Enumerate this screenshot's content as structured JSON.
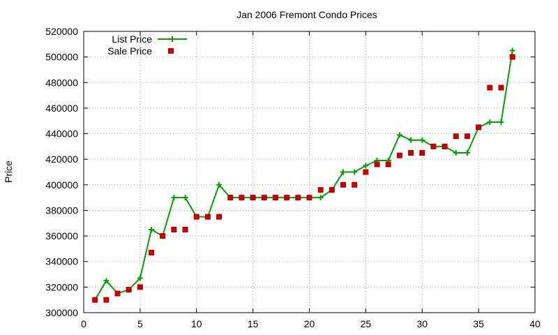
{
  "chart_data": {
    "type": "line",
    "title": "Jan 2006 Fremont Condo Prices",
    "xlabel": "",
    "ylabel": "Price",
    "xlim": [
      0,
      40
    ],
    "ylim": [
      300000,
      520000
    ],
    "x_ticks": [
      0,
      5,
      10,
      15,
      20,
      25,
      30,
      35,
      40
    ],
    "y_ticks": [
      300000,
      320000,
      340000,
      360000,
      380000,
      400000,
      420000,
      440000,
      460000,
      480000,
      500000,
      520000
    ],
    "grid": true,
    "legend_position": "top-left",
    "series": [
      {
        "name": "List Price",
        "style": "line-points",
        "marker": "plus",
        "color": "#00a000",
        "x": [
          1,
          2,
          3,
          4,
          5,
          6,
          7,
          8,
          9,
          10,
          11,
          12,
          13,
          14,
          15,
          16,
          17,
          18,
          19,
          20,
          21,
          22,
          23,
          24,
          25,
          26,
          27,
          28,
          29,
          30,
          31,
          32,
          33,
          34,
          35,
          36,
          37,
          38
        ],
        "y": [
          310000,
          325000,
          315000,
          318000,
          327000,
          365000,
          360000,
          390000,
          390000,
          375000,
          375000,
          400000,
          390000,
          390000,
          390000,
          390000,
          390000,
          390000,
          390000,
          390000,
          390000,
          396000,
          410000,
          410000,
          415000,
          419000,
          419000,
          439000,
          435000,
          435000,
          430000,
          430000,
          425000,
          425000,
          445000,
          449000,
          449000,
          505000
        ]
      },
      {
        "name": "Sale Price",
        "style": "points",
        "marker": "square",
        "color": "#c00000",
        "x": [
          1,
          2,
          3,
          4,
          5,
          6,
          7,
          8,
          9,
          10,
          11,
          12,
          13,
          14,
          15,
          16,
          17,
          18,
          19,
          20,
          21,
          22,
          23,
          24,
          25,
          26,
          27,
          28,
          29,
          30,
          31,
          32,
          33,
          34,
          35,
          36,
          37,
          38
        ],
        "y": [
          310000,
          310000,
          315000,
          318000,
          320000,
          347000,
          360000,
          365000,
          365000,
          375000,
          375000,
          375000,
          390000,
          390000,
          390000,
          390000,
          390000,
          390000,
          390000,
          390000,
          396000,
          396000,
          400000,
          400000,
          410000,
          416000,
          416000,
          423000,
          425000,
          425000,
          430000,
          430000,
          438000,
          438000,
          445000,
          476000,
          476000,
          500000
        ]
      }
    ]
  }
}
